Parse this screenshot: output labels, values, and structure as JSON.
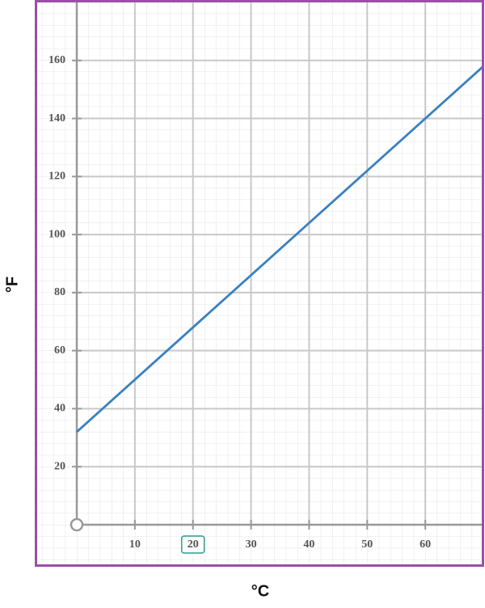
{
  "chart_data": {
    "type": "line",
    "x_label": "°C",
    "y_label": "°F",
    "x": [
      0,
      70
    ],
    "values": [
      32,
      158
    ],
    "color": "#3a80c1",
    "xlim": [
      0,
      70
    ],
    "xticks": [
      10,
      20,
      30,
      40,
      50,
      60
    ],
    "ylim": [
      0,
      180
    ],
    "yticks": [
      20,
      40,
      60,
      80,
      100,
      120,
      140,
      160
    ],
    "grid": true,
    "highlighted_xtick": 20
  }
}
